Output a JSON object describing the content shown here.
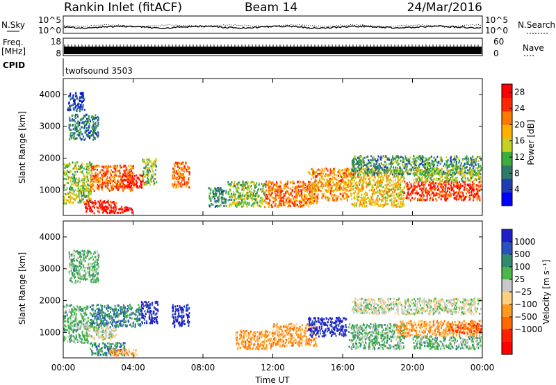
{
  "header": {
    "station": "Rankin Inlet (fitACF)",
    "beam": "Beam 14",
    "date": "24/Mar/2016"
  },
  "top_panels": {
    "nsky_label": "N.Sky",
    "nsky_ticks": [
      "10^5",
      "10^0"
    ],
    "nsearch_label": "N.Search",
    "nsearch_ticks": [
      "10^5",
      "10^0"
    ],
    "freq_label": "Freq.",
    "freq_unit": "[MHz]",
    "freq_ticks": [
      "18",
      "8"
    ],
    "nave_label": "Nave",
    "nave_ticks": [
      "60",
      "0"
    ],
    "cpid_label": "CPID",
    "cpid_value": "twofsound 3503"
  },
  "colors": {
    "power_scale": [
      "#0000ff",
      "#1f3fb0",
      "#2f7a6a",
      "#3cae3c",
      "#c8d020",
      "#ffb000",
      "#ff7800",
      "#ff2800",
      "#ff0000"
    ],
    "velocity_scale": [
      "#2020c8",
      "#2a52be",
      "#2f8c6e",
      "#48b848",
      "#c8c8c8",
      "#ffd080",
      "#ff9a20",
      "#ff6a00",
      "#ff2000",
      "#ff0000"
    ],
    "ground_scatter": "#c8c8c8"
  },
  "chart_data": [
    {
      "type": "heatmap",
      "panel": "power",
      "x_ticks": [
        "00:00",
        "04:00",
        "08:00",
        "12:00",
        "16:00",
        "20:00",
        "00:00"
      ],
      "xlim_hours": [
        0,
        24
      ],
      "ylabel": "Slant Range [km]",
      "ylim": [
        200,
        4500
      ],
      "y_ticks": [
        1000,
        2000,
        3000,
        4000
      ],
      "colorbar_label": "Power [dB]",
      "colorbar_ticks": [
        4,
        8,
        12,
        16,
        20,
        24,
        28
      ],
      "colorbar_range": [
        0,
        30
      ],
      "regions": [
        {
          "t0": 0.0,
          "t1": 1.6,
          "r0": 600,
          "r1": 1900,
          "v": 14
        },
        {
          "t0": 0.3,
          "t1": 2.0,
          "r0": 2600,
          "r1": 3400,
          "v": 8
        },
        {
          "t0": 0.2,
          "t1": 1.2,
          "r0": 3500,
          "r1": 4100,
          "v": 5
        },
        {
          "t0": 1.2,
          "t1": 3.0,
          "r0": 300,
          "r1": 700,
          "v": 27
        },
        {
          "t0": 1.5,
          "t1": 4.0,
          "r0": 1000,
          "r1": 1800,
          "v": 22
        },
        {
          "t0": 3.2,
          "t1": 4.6,
          "r0": 1100,
          "r1": 1500,
          "v": 27
        },
        {
          "t0": 2.6,
          "t1": 4.0,
          "r0": 300,
          "r1": 500,
          "v": 28
        },
        {
          "t0": 4.5,
          "t1": 5.3,
          "r0": 1200,
          "r1": 2000,
          "v": 13
        },
        {
          "t0": 6.2,
          "t1": 7.2,
          "r0": 1100,
          "r1": 1900,
          "v": 22
        },
        {
          "t0": 8.3,
          "t1": 9.3,
          "r0": 500,
          "r1": 1100,
          "v": 9
        },
        {
          "t0": 9.4,
          "t1": 11.5,
          "r0": 500,
          "r1": 1300,
          "v": 13
        },
        {
          "t0": 11.5,
          "t1": 14.5,
          "r0": 500,
          "r1": 1300,
          "v": 22
        },
        {
          "t0": 14.0,
          "t1": 16.5,
          "r0": 700,
          "r1": 1700,
          "v": 20
        },
        {
          "t0": 16.5,
          "t1": 19.5,
          "r0": 500,
          "r1": 1700,
          "v": 17
        },
        {
          "t0": 16.5,
          "t1": 23.9,
          "r0": 1500,
          "r1": 2100,
          "v": 10
        },
        {
          "t0": 19.5,
          "t1": 23.9,
          "r0": 700,
          "r1": 1300,
          "v": 25
        },
        {
          "t0": 20.0,
          "t1": 23.9,
          "r0": 1300,
          "r1": 1700,
          "v": 14
        }
      ]
    },
    {
      "type": "heatmap",
      "panel": "velocity",
      "x_ticks": [
        "00:00",
        "04:00",
        "08:00",
        "12:00",
        "16:00",
        "20:00",
        "00:00"
      ],
      "xlim_hours": [
        0,
        24
      ],
      "xlabel": "Time UT",
      "ylabel": "Slant Range [km]",
      "ylim": [
        200,
        4500
      ],
      "y_ticks": [
        1000,
        2000,
        3000,
        4000
      ],
      "colorbar_label": "Velocity [m s⁻¹]",
      "colorbar_ticks": [
        "1000",
        "500",
        "100",
        "25",
        "−25",
        "−100",
        "−500",
        "−1000"
      ],
      "regions": [
        {
          "t0": 0.0,
          "t1": 1.4,
          "r0": 700,
          "r1": 1900,
          "k": 3
        },
        {
          "t0": 0.3,
          "t1": 2.0,
          "r0": 2600,
          "r1": 3600,
          "k": 3
        },
        {
          "t0": 1.2,
          "t1": 3.0,
          "r0": 800,
          "r1": 1300,
          "k": 4
        },
        {
          "t0": 1.5,
          "t1": 3.5,
          "r0": 300,
          "r1": 700,
          "k": 2
        },
        {
          "t0": 2.6,
          "t1": 4.2,
          "r0": 300,
          "r1": 500,
          "k": 6
        },
        {
          "t0": 1.5,
          "t1": 4.4,
          "r0": 1200,
          "r1": 1900,
          "k": 2
        },
        {
          "t0": 4.4,
          "t1": 5.4,
          "r0": 1300,
          "r1": 2000,
          "k": 0
        },
        {
          "t0": 6.2,
          "t1": 7.2,
          "r0": 1200,
          "r1": 1900,
          "k": 0
        },
        {
          "t0": 9.8,
          "t1": 12.0,
          "r0": 500,
          "r1": 1100,
          "k": 6
        },
        {
          "t0": 12.0,
          "t1": 14.5,
          "r0": 600,
          "r1": 1300,
          "k": 6
        },
        {
          "t0": 14.0,
          "t1": 16.2,
          "r0": 900,
          "r1": 1500,
          "k": 0
        },
        {
          "t0": 16.3,
          "t1": 19.5,
          "r0": 500,
          "r1": 1300,
          "k": 3
        },
        {
          "t0": 19.0,
          "t1": 23.9,
          "r0": 900,
          "r1": 1400,
          "k": 6
        },
        {
          "t0": 16.5,
          "t1": 23.9,
          "r0": 1600,
          "r1": 2100,
          "k": 4
        },
        {
          "t0": 20.0,
          "t1": 23.9,
          "r0": 500,
          "r1": 900,
          "k": 3
        },
        {
          "t0": 22.0,
          "t1": 23.9,
          "r0": 1000,
          "r1": 1300,
          "k": 7
        }
      ]
    }
  ]
}
